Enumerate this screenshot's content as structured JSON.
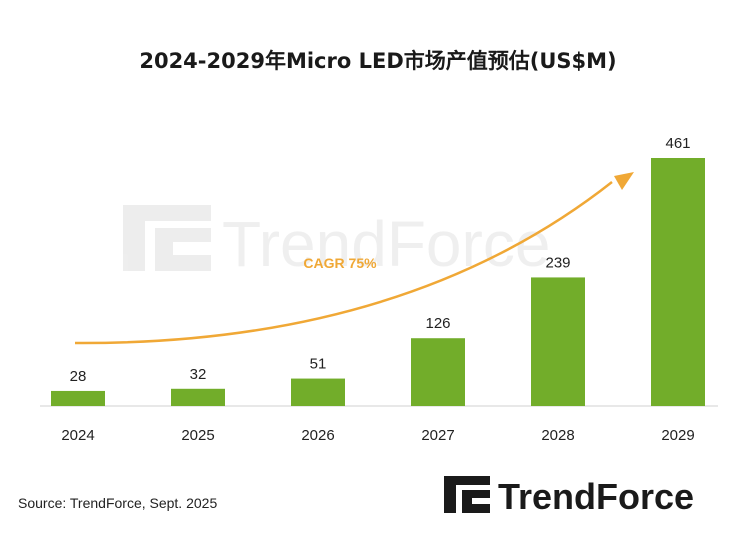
{
  "chart_data": {
    "type": "bar",
    "title": "2024-2029年Micro LED市场产值预估(US$M)",
    "categories": [
      "2024",
      "2025",
      "2026",
      "2027",
      "2028",
      "2029"
    ],
    "values": [
      28,
      32,
      51,
      126,
      239,
      461
    ],
    "annotation": "CAGR 75%",
    "bar_color": "#72ad2a",
    "arrow_color": "#f0a836"
  },
  "source": "Source: TrendForce, Sept. 2025",
  "watermark": "TrendForce",
  "logo": {
    "text": "TrendForce",
    "color": "#1a1a1a"
  }
}
